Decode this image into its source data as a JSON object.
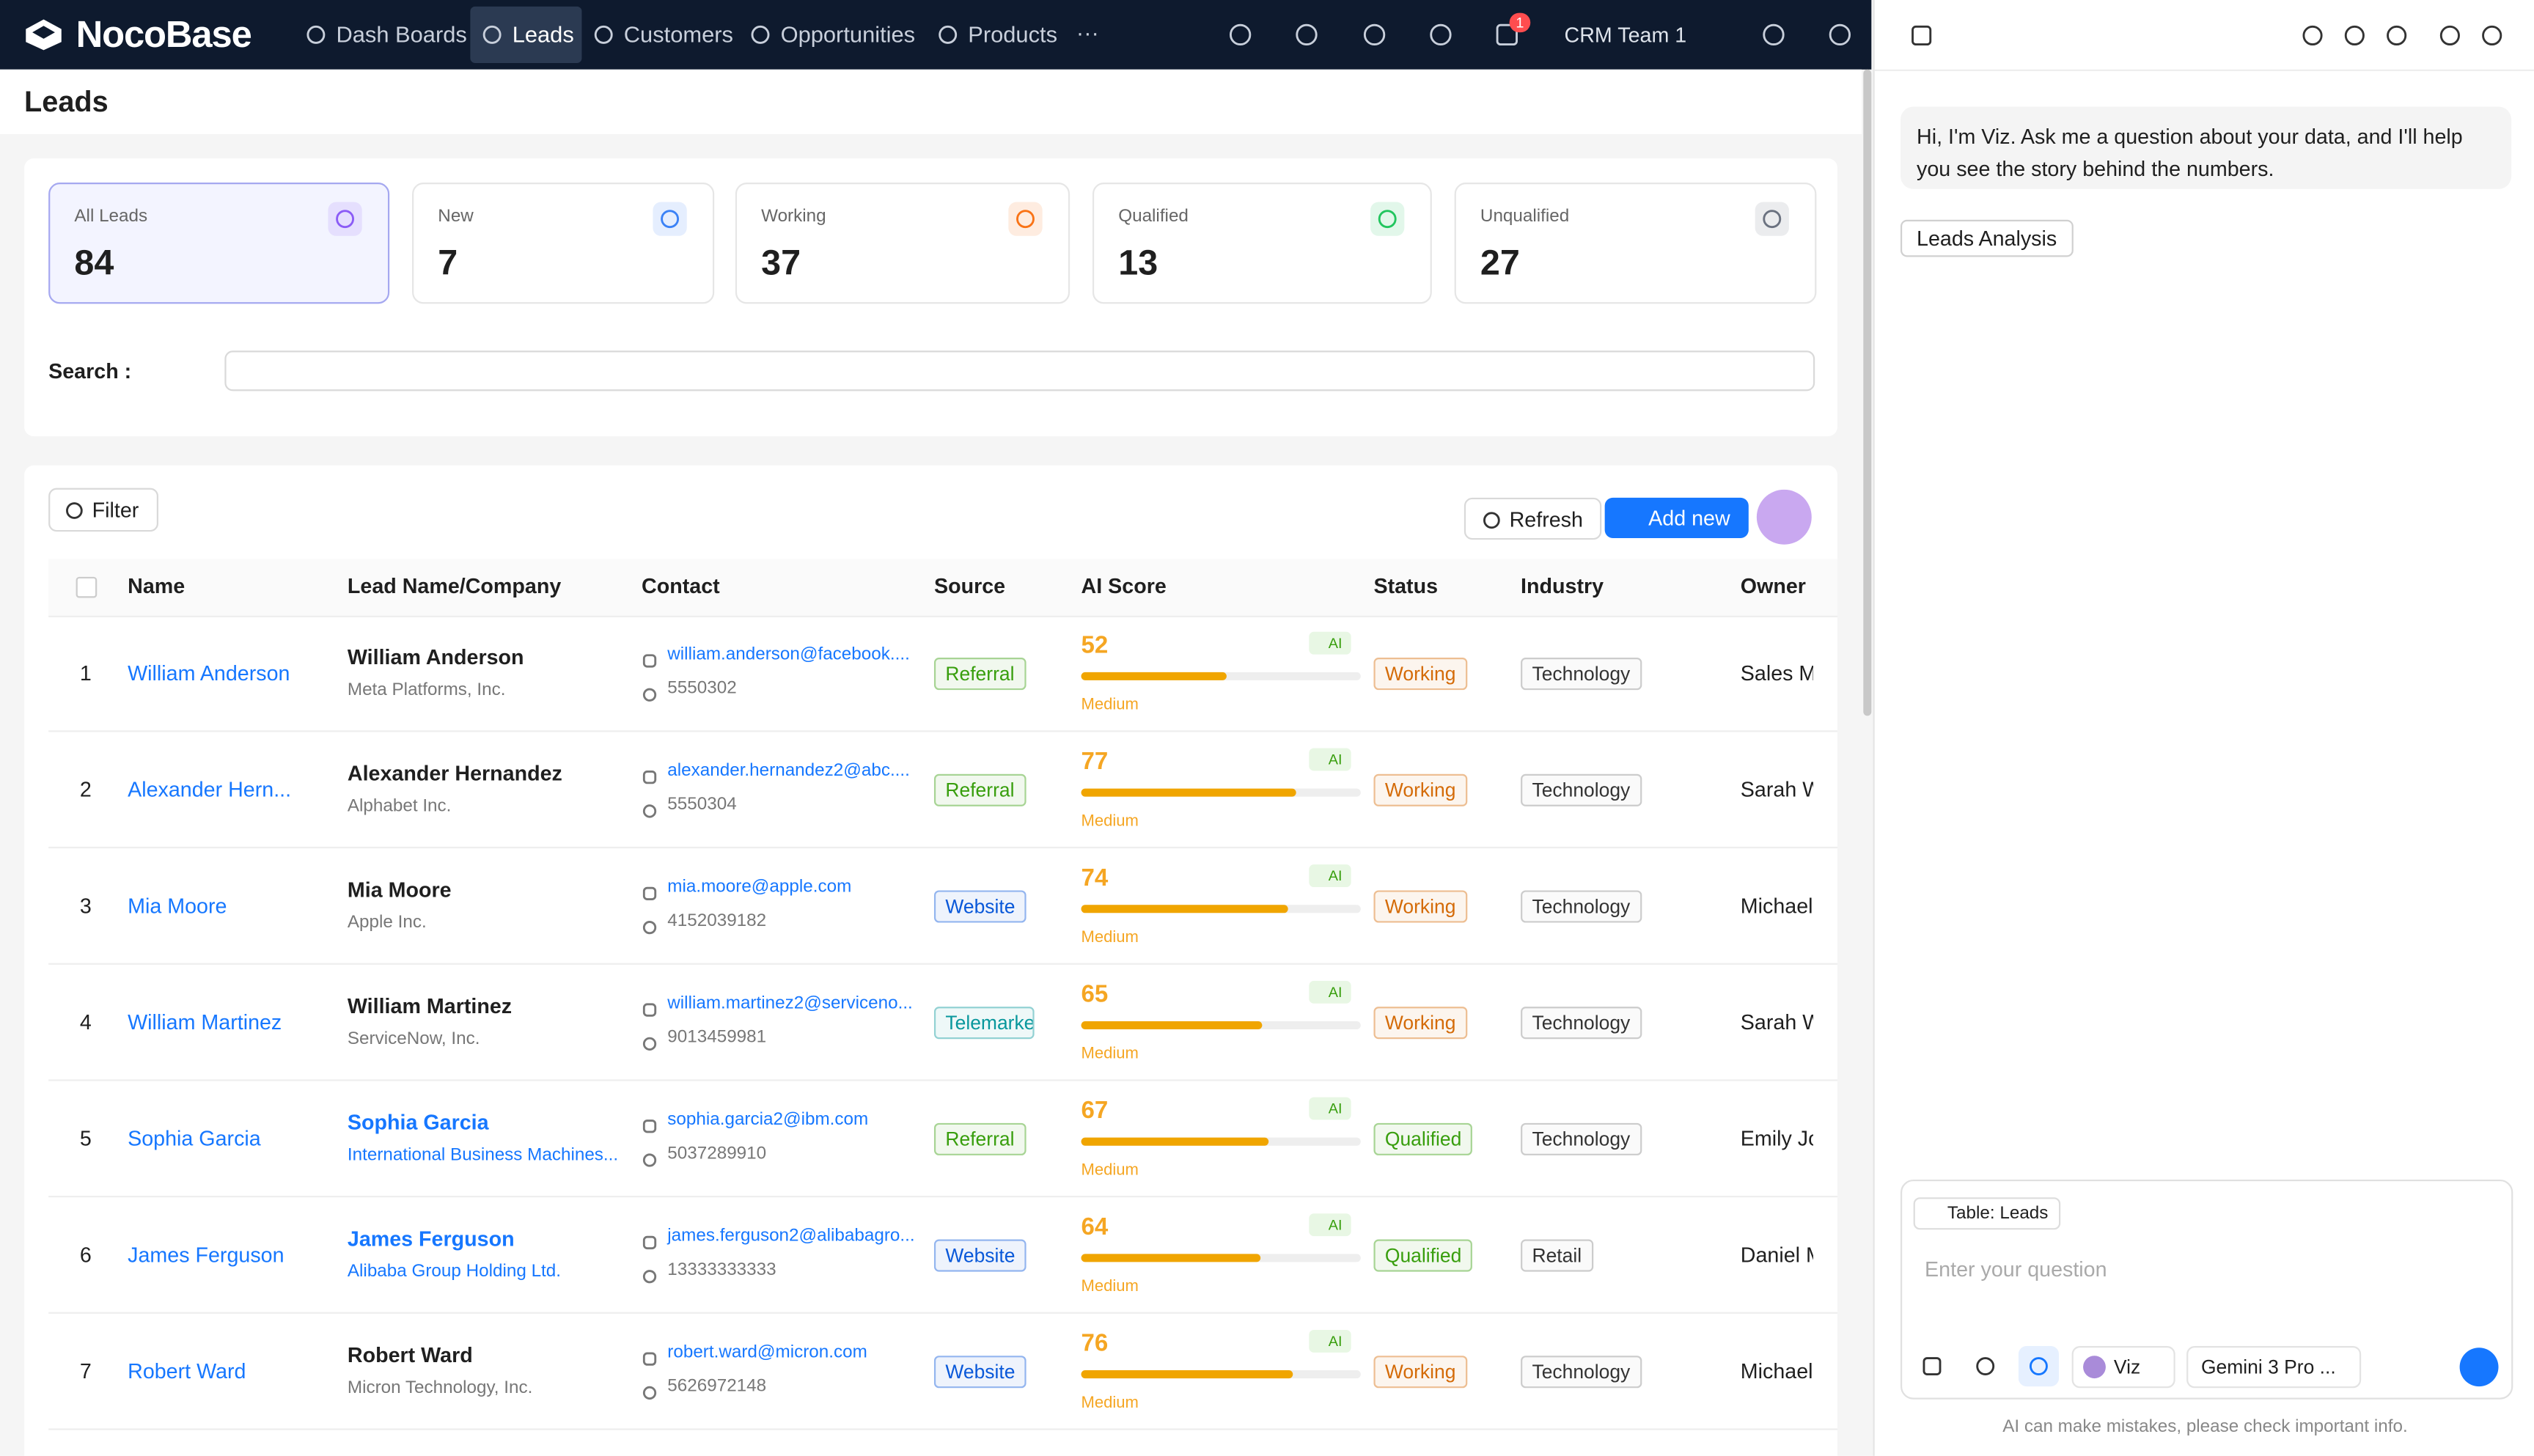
{
  "nav": {
    "brand": "NocoBase",
    "items": [
      "Dash Boards",
      "Leads",
      "Customers",
      "Opportunities",
      "Products"
    ],
    "more": "···",
    "badge": "1",
    "team": "CRM Team 1"
  },
  "page_title": "Leads",
  "stats": [
    {
      "label": "All Leads",
      "value": 84,
      "color": "#8b5cf6"
    },
    {
      "label": "New",
      "value": 7,
      "color": "#3b82f6"
    },
    {
      "label": "Working",
      "value": 37,
      "color": "#f97316"
    },
    {
      "label": "Qualified",
      "value": 13,
      "color": "#22c55e"
    },
    {
      "label": "Unqualified",
      "value": 27,
      "color": "#6b7280"
    }
  ],
  "search_label": "Search :",
  "toolbar": {
    "filter": "Filter",
    "refresh": "Refresh",
    "add": "Add new"
  },
  "table": {
    "columns": [
      "Name",
      "Lead Name/Company",
      "Contact",
      "Source",
      "AI Score",
      "Status",
      "Industry",
      "Owner"
    ],
    "rows": [
      {
        "index": 1,
        "name": "William Anderson",
        "lead": "William Anderson",
        "lead_link": false,
        "company": "Meta Platforms, Inc.",
        "email": "william.anderson@facebook....",
        "phone": "5550302",
        "source": "Referral",
        "source_color": "#389e0d",
        "score": 52,
        "ai": "AI",
        "level": "Medium",
        "status": "Working",
        "status_color": "#d46b08",
        "industry": "Technology",
        "owner": "Sales M"
      },
      {
        "index": 2,
        "name": "Alexander Hern...",
        "lead": "Alexander Hernandez",
        "lead_link": false,
        "company": "Alphabet Inc.",
        "email": "alexander.hernandez2@abc....",
        "phone": "5550304",
        "source": "Referral",
        "source_color": "#389e0d",
        "score": 77,
        "ai": "AI",
        "level": "Medium",
        "status": "Working",
        "status_color": "#d46b08",
        "industry": "Technology",
        "owner": "Sarah W"
      },
      {
        "index": 3,
        "name": "Mia Moore",
        "lead": "Mia Moore",
        "lead_link": false,
        "company": "Apple Inc.",
        "email": "mia.moore@apple.com",
        "phone": "4152039182",
        "source": "Website",
        "source_color": "#0958d9",
        "score": 74,
        "ai": "AI",
        "level": "Medium",
        "status": "Working",
        "status_color": "#d46b08",
        "industry": "Technology",
        "owner": "Michael"
      },
      {
        "index": 4,
        "name": "William Martinez",
        "lead": "William Martinez",
        "lead_link": false,
        "company": "ServiceNow, Inc.",
        "email": "william.martinez2@serviceno...",
        "phone": "9013459981",
        "source": "Telemarket",
        "source_color": "#08979c",
        "score": 65,
        "ai": "AI",
        "level": "Medium",
        "status": "Working",
        "status_color": "#d46b08",
        "industry": "Technology",
        "owner": "Sarah W"
      },
      {
        "index": 5,
        "name": "Sophia Garcia",
        "lead": "Sophia Garcia",
        "lead_link": true,
        "company": "International Business Machines...",
        "email": "sophia.garcia2@ibm.com",
        "phone": "5037289910",
        "source": "Referral",
        "source_color": "#389e0d",
        "score": 67,
        "ai": "AI",
        "level": "Medium",
        "status": "Qualified",
        "status_color": "#389e0d",
        "industry": "Technology",
        "owner": "Emily Jo"
      },
      {
        "index": 6,
        "name": "James Ferguson",
        "lead": "James Ferguson",
        "lead_link": true,
        "company": "Alibaba Group Holding Ltd.",
        "email": "james.ferguson2@alibabagro...",
        "phone": "13333333333",
        "source": "Website",
        "source_color": "#0958d9",
        "score": 64,
        "ai": "AI",
        "level": "Medium",
        "status": "Qualified",
        "status_color": "#389e0d",
        "industry": "Retail",
        "owner": "Daniel M"
      },
      {
        "index": 7,
        "name": "Robert Ward",
        "lead": "Robert Ward",
        "lead_link": false,
        "company": "Micron Technology, Inc.",
        "email": "robert.ward@micron.com",
        "phone": "5626972148",
        "source": "Website",
        "source_color": "#0958d9",
        "score": 76,
        "ai": "AI",
        "level": "Medium",
        "status": "Working",
        "status_color": "#d46b08",
        "industry": "Technology",
        "owner": "Michael"
      }
    ]
  },
  "assistant": {
    "greeting": "Hi, I'm Viz. Ask me a question about your data, and I'll help you see the story behind the numbers.",
    "chip": "Leads Analysis",
    "context": "Table: Leads",
    "placeholder": "Enter your question",
    "agent": "Viz",
    "model": "Gemini 3 Pro ...",
    "disclaimer": "AI can make mistakes, please check important info."
  }
}
